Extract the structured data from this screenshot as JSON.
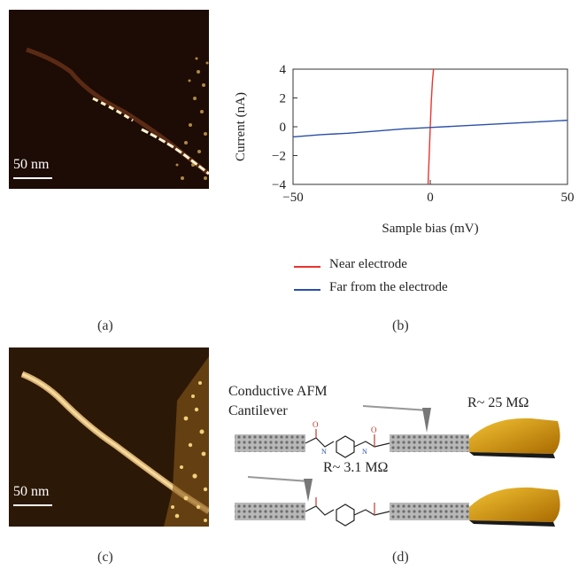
{
  "panel_labels": {
    "a": "(a)",
    "b": "(b)",
    "c": "(c)",
    "d": "(d)"
  },
  "scalebars": {
    "a": "50 nm",
    "c": "50 nm"
  },
  "chart_data": {
    "type": "line",
    "xlabel": "Sample bias (mV)",
    "ylabel": "Current (nA)",
    "xlim": [
      -50,
      50
    ],
    "ylim": [
      -4,
      4
    ],
    "xticks": [
      -50,
      0,
      50
    ],
    "yticks": [
      4,
      2,
      0,
      -2,
      -4
    ],
    "legend_position": "below",
    "series": [
      {
        "name": "Near electrode",
        "color": "#e8352e",
        "x": [
          -0.8,
          -0.4,
          0,
          0.4,
          0.8,
          1.2
        ],
        "y": [
          -4,
          -2,
          0,
          1.8,
          3.2,
          4
        ]
      },
      {
        "name": "Far from the electrode",
        "color": "#2b4fa8",
        "x": [
          -50,
          -40,
          -30,
          -20,
          -10,
          0,
          10,
          20,
          30,
          40,
          50
        ],
        "y": [
          -0.7,
          -0.55,
          -0.45,
          -0.3,
          -0.15,
          -0.05,
          0.05,
          0.15,
          0.25,
          0.35,
          0.45
        ]
      }
    ]
  },
  "diagram": {
    "cantilever_label_1": "Conductive AFM",
    "cantilever_label_2": "Cantilever",
    "r_top": "R~ 25 MΩ",
    "r_bottom": "R~ 3.1 MΩ",
    "molecule_atoms": {
      "o": "O",
      "n": "N",
      "h": "H"
    }
  }
}
